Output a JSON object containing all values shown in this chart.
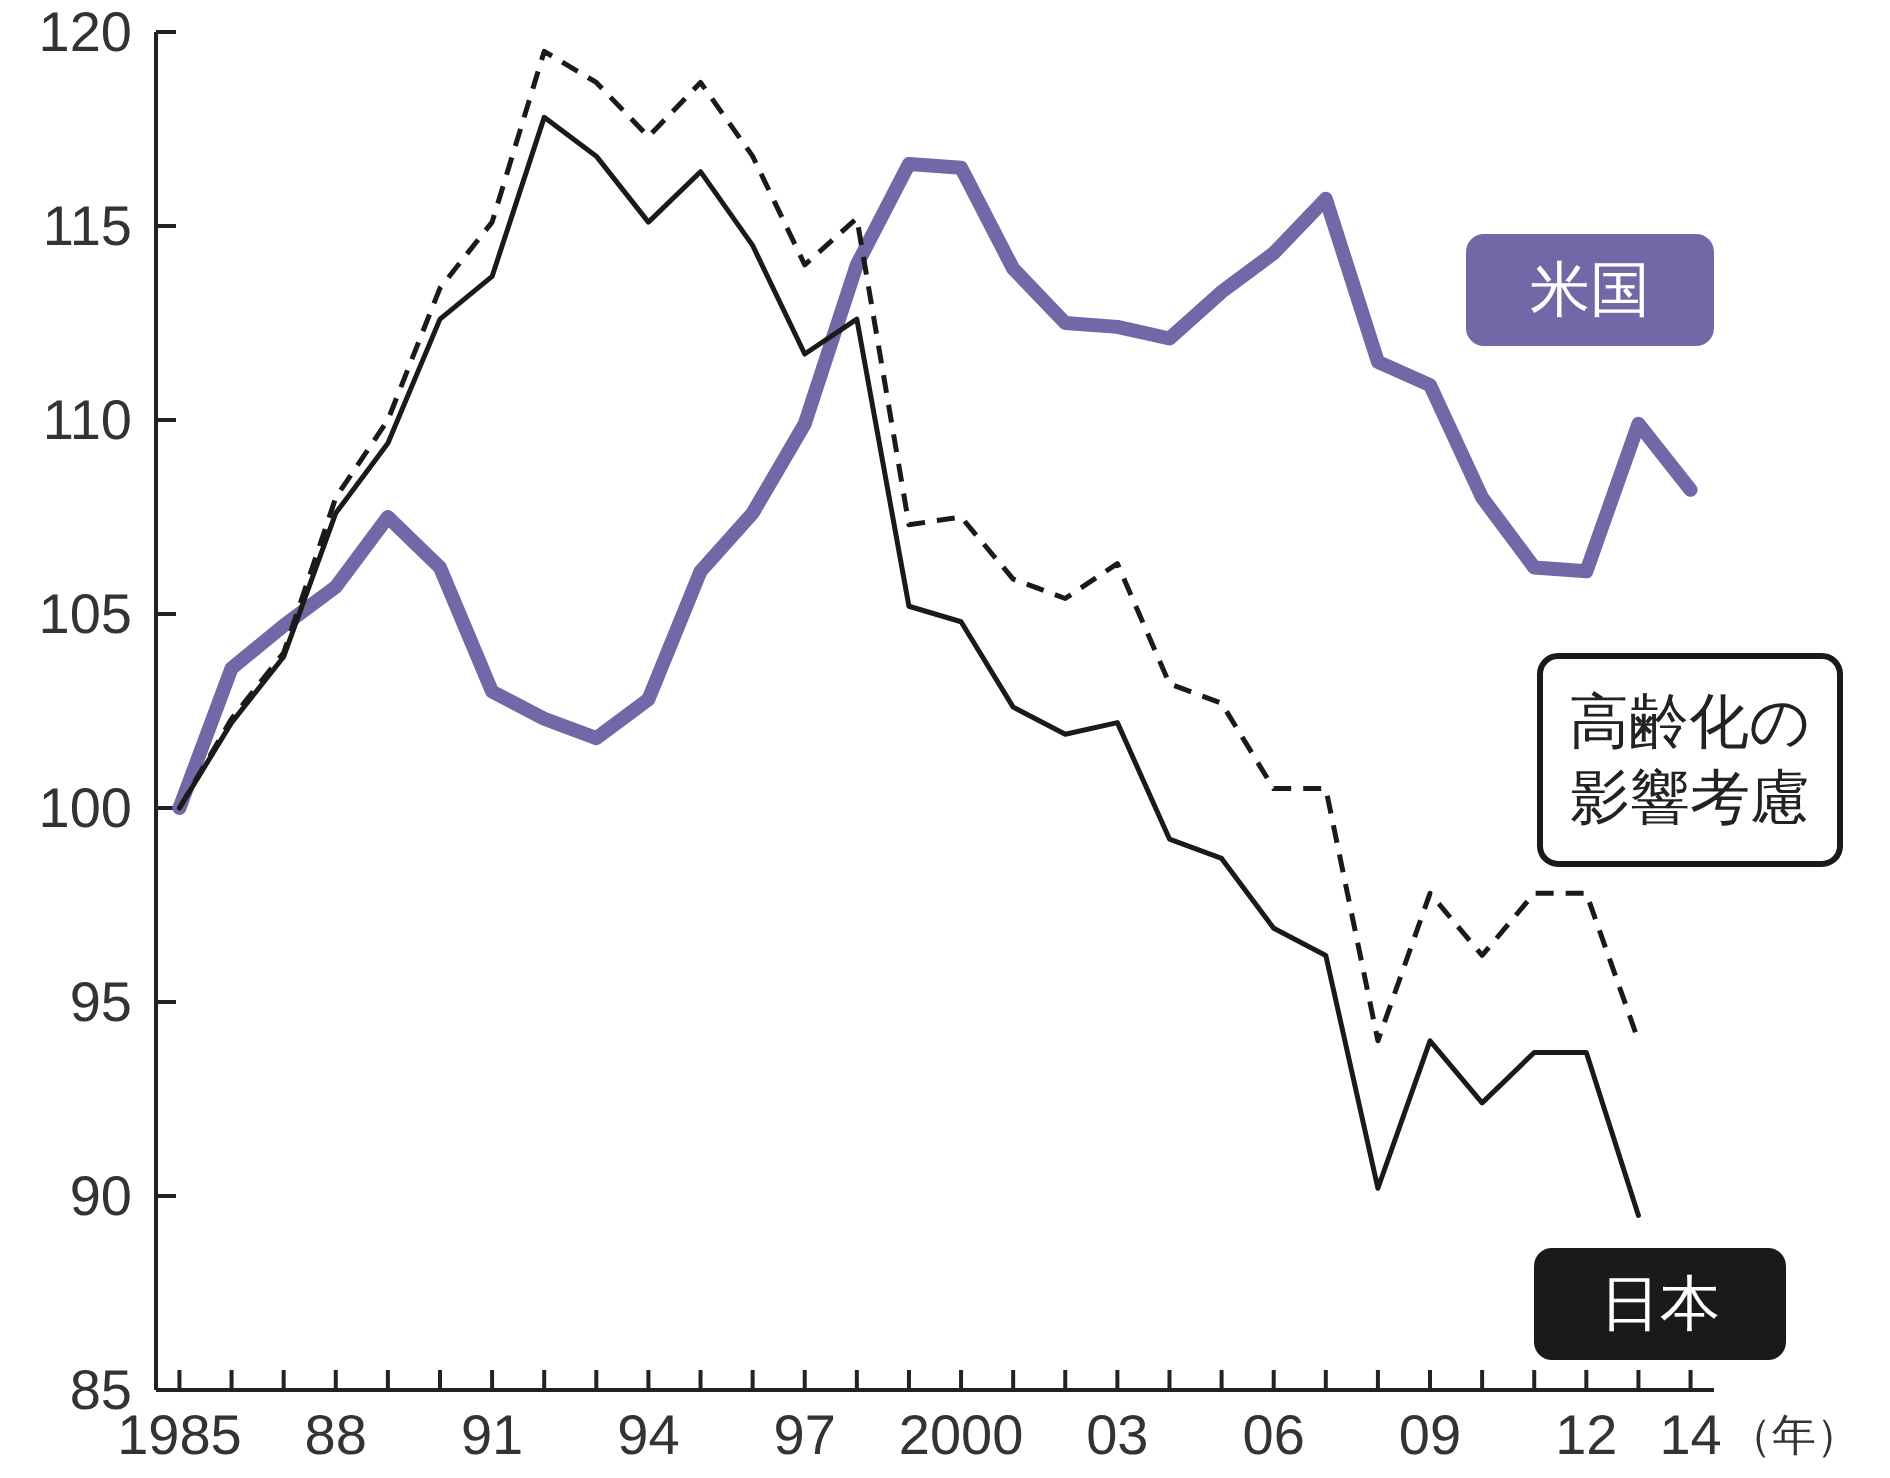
{
  "chart_data": {
    "type": "line",
    "xlabel": "（年）",
    "x": [
      1985,
      1986,
      1987,
      1988,
      1989,
      1990,
      1991,
      1992,
      1993,
      1994,
      1995,
      1996,
      1997,
      1998,
      1999,
      2000,
      2001,
      2002,
      2003,
      2004,
      2005,
      2006,
      2007,
      2008,
      2009,
      2010,
      2011,
      2012,
      2013,
      2014
    ],
    "xlim": [
      1984.55,
      2014.45
    ],
    "xticks": [
      {
        "value": 1985,
        "label": "1985"
      },
      {
        "value": 1986,
        "label": null
      },
      {
        "value": 1987,
        "label": null
      },
      {
        "value": 1988,
        "label": "88"
      },
      {
        "value": 1989,
        "label": null
      },
      {
        "value": 1990,
        "label": null
      },
      {
        "value": 1991,
        "label": "91"
      },
      {
        "value": 1992,
        "label": null
      },
      {
        "value": 1993,
        "label": null
      },
      {
        "value": 1994,
        "label": "94"
      },
      {
        "value": 1995,
        "label": null
      },
      {
        "value": 1996,
        "label": null
      },
      {
        "value": 1997,
        "label": "97"
      },
      {
        "value": 1998,
        "label": null
      },
      {
        "value": 1999,
        "label": null
      },
      {
        "value": 2000,
        "label": "2000"
      },
      {
        "value": 2001,
        "label": null
      },
      {
        "value": 2002,
        "label": null
      },
      {
        "value": 2003,
        "label": "03"
      },
      {
        "value": 2004,
        "label": null
      },
      {
        "value": 2005,
        "label": null
      },
      {
        "value": 2006,
        "label": "06"
      },
      {
        "value": 2007,
        "label": null
      },
      {
        "value": 2008,
        "label": null
      },
      {
        "value": 2009,
        "label": "09"
      },
      {
        "value": 2010,
        "label": null
      },
      {
        "value": 2011,
        "label": null
      },
      {
        "value": 2012,
        "label": "12"
      },
      {
        "value": 2013,
        "label": null
      },
      {
        "value": 2014,
        "label": "14"
      }
    ],
    "ylim": [
      85,
      120
    ],
    "yticks": [
      85,
      90,
      95,
      100,
      105,
      110,
      115,
      120
    ],
    "marker": "none",
    "series": [
      {
        "name": "米国",
        "color": "#7268a8",
        "line_style": "solid",
        "values": [
          100,
          103.6,
          104.7,
          105.7,
          107.5,
          106.2,
          103.0,
          102.3,
          101.8,
          102.8,
          106.1,
          107.6,
          109.9,
          114.0,
          116.6,
          116.5,
          113.9,
          112.5,
          112.4,
          112.1,
          113.3,
          114.3,
          115.7,
          111.5,
          110.9,
          108.0,
          106.2,
          106.1,
          109.9,
          108.2
        ]
      },
      {
        "name": "高齢化の影響考慮",
        "color": "#1a1a1a",
        "line_style": "dashed",
        "values": [
          100,
          102.3,
          104.0,
          108.0,
          110.0,
          113.4,
          115.1,
          119.5,
          118.7,
          117.3,
          118.7,
          116.8,
          114.0,
          115.2,
          107.3,
          107.5,
          105.9,
          105.4,
          106.3,
          103.2,
          102.7,
          100.5,
          100.5,
          94.0,
          97.8,
          96.2,
          97.8,
          97.8,
          94.0,
          null
        ]
      },
      {
        "name": "日本",
        "color": "#1a1a1a",
        "line_style": "solid",
        "values": [
          100,
          102.2,
          103.9,
          107.6,
          109.4,
          112.6,
          113.7,
          117.8,
          116.8,
          115.1,
          116.4,
          114.5,
          111.7,
          112.6,
          105.2,
          104.8,
          102.6,
          101.9,
          102.2,
          99.2,
          98.7,
          96.9,
          96.2,
          90.2,
          94.0,
          92.4,
          93.7,
          93.7,
          89.5,
          null
        ]
      }
    ]
  }
}
